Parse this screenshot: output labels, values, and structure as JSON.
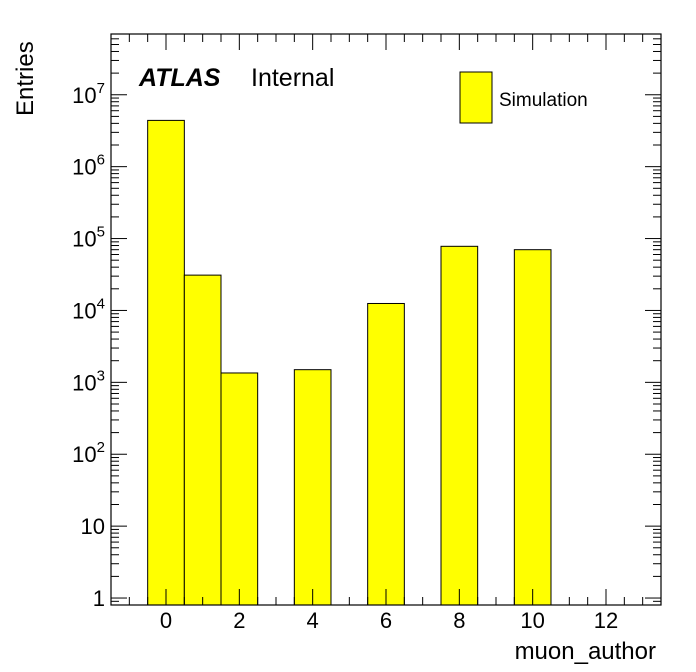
{
  "chart_data": {
    "type": "bar",
    "title": "",
    "xlabel": "muon_author",
    "ylabel": "Entries",
    "ylog": true,
    "xlim": [
      -1.5,
      13.5
    ],
    "ylim": [
      0.8,
      70000000
    ],
    "bin_width": 1,
    "bins": [
      {
        "x": 0,
        "value": 4400000
      },
      {
        "x": 1,
        "value": 31000
      },
      {
        "x": 2,
        "value": 1350
      },
      {
        "x": 4,
        "value": 1500
      },
      {
        "x": 6,
        "value": 12500
      },
      {
        "x": 8,
        "value": 78000
      },
      {
        "x": 10,
        "value": 70000
      }
    ],
    "x_ticks": [
      {
        "value": 0,
        "label": "0"
      },
      {
        "value": 2,
        "label": "2"
      },
      {
        "value": 4,
        "label": "4"
      },
      {
        "value": 6,
        "label": "6"
      },
      {
        "value": 8,
        "label": "8"
      },
      {
        "value": 10,
        "label": "10"
      },
      {
        "value": 12,
        "label": "12"
      }
    ],
    "y_ticks": [
      {
        "value": 1,
        "base": "1",
        "exp": ""
      },
      {
        "value": 10,
        "base": "10",
        "exp": ""
      },
      {
        "value": 100,
        "base": "10",
        "exp": "2"
      },
      {
        "value": 1000,
        "base": "10",
        "exp": "3"
      },
      {
        "value": 10000,
        "base": "10",
        "exp": "4"
      },
      {
        "value": 100000,
        "base": "10",
        "exp": "5"
      },
      {
        "value": 1000000,
        "base": "10",
        "exp": "6"
      },
      {
        "value": 10000000,
        "base": "10",
        "exp": "7"
      }
    ],
    "fill_color": "#ffff00",
    "line_color": "#000000",
    "legend": {
      "label": "Simulation",
      "position": "top-right"
    },
    "annotation": {
      "atlas": "ATLAS",
      "status": "Internal"
    }
  }
}
